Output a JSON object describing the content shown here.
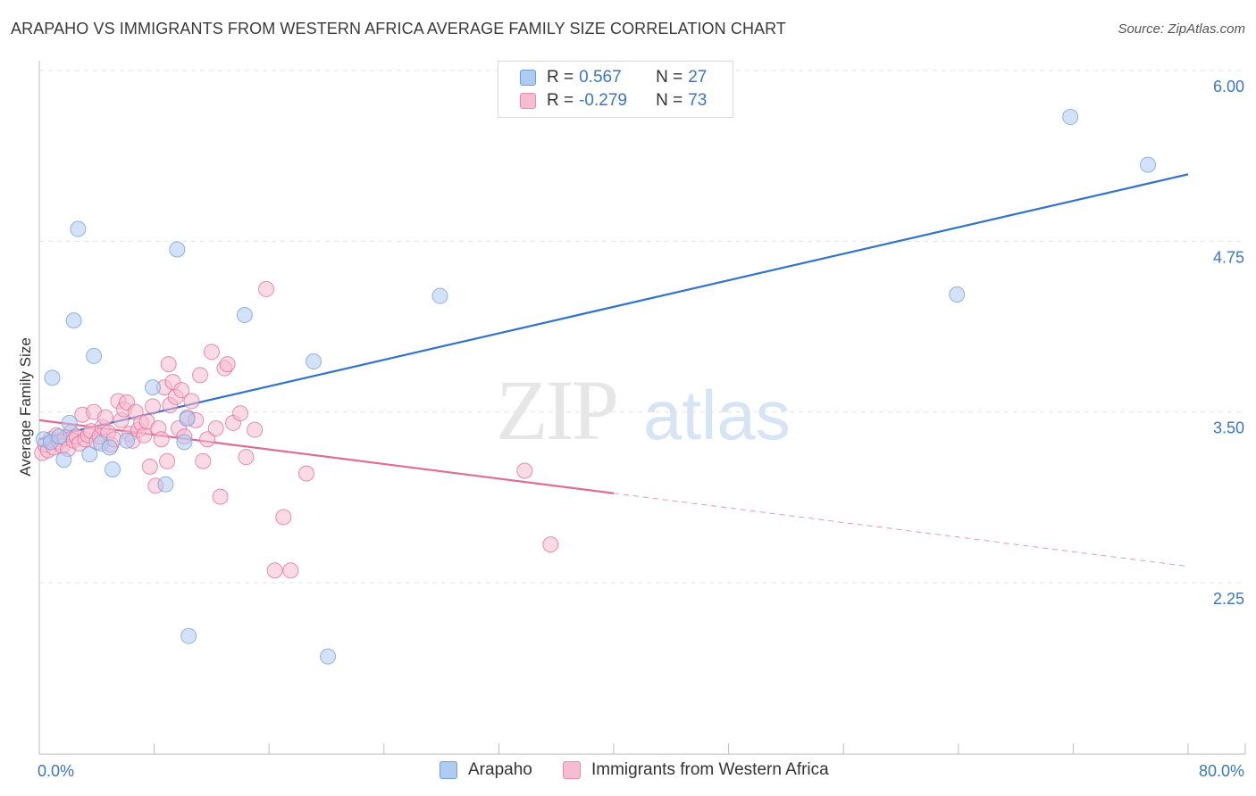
{
  "title": "ARAPAHO VS IMMIGRANTS FROM WESTERN AFRICA AVERAGE FAMILY SIZE CORRELATION CHART",
  "source": "Source: ZipAtlas.com",
  "watermark": {
    "zip": "ZIP",
    "atlas": "atlas"
  },
  "legend": {
    "r_label": "R =",
    "n_label": "N =",
    "series": [
      {
        "name": "Arapaho",
        "r": "0.567",
        "n": "27",
        "fill": "#aecbf2",
        "stroke": "#6f9fd8"
      },
      {
        "name": "Immigrants from Western Africa",
        "r": "-0.279",
        "n": "73",
        "fill": "#f8bcd0",
        "stroke": "#e98aa8"
      }
    ]
  },
  "chart_data": {
    "type": "scatter",
    "title": "ARAPAHO VS IMMIGRANTS FROM WESTERN AFRICA AVERAGE FAMILY SIZE CORRELATION CHART",
    "xlabel": "",
    "ylabel": "Average Family Size",
    "xlim": [
      0,
      80
    ],
    "ylim": [
      1.0,
      6.2
    ],
    "x_tick_labels": [
      {
        "value": 0,
        "label": "0.0%"
      },
      {
        "value": 80,
        "label": "80.0%"
      }
    ],
    "y_ticks": [
      {
        "value": 2.25,
        "label": "2.25"
      },
      {
        "value": 3.5,
        "label": "3.50"
      },
      {
        "value": 4.75,
        "label": "4.75"
      },
      {
        "value": 6.0,
        "label": "6.00"
      }
    ],
    "x_minor_ticks": [
      0,
      8,
      16,
      24,
      32,
      40,
      48,
      56,
      64,
      72,
      80
    ],
    "grid": true,
    "series": [
      {
        "name": "Arapaho",
        "color": "#6f9fd8",
        "fill": "#aecbf2",
        "points": [
          [
            0.3,
            3.3
          ],
          [
            0.8,
            3.28
          ],
          [
            1.4,
            3.32
          ],
          [
            0.9,
            3.75
          ],
          [
            1.7,
            3.15
          ],
          [
            2.1,
            3.42
          ],
          [
            2.4,
            4.17
          ],
          [
            2.7,
            4.84
          ],
          [
            3.5,
            3.19
          ],
          [
            3.8,
            3.91
          ],
          [
            4.3,
            3.27
          ],
          [
            4.9,
            3.24
          ],
          [
            5.1,
            3.08
          ],
          [
            6.1,
            3.29
          ],
          [
            7.9,
            3.68
          ],
          [
            8.8,
            2.97
          ],
          [
            9.6,
            4.69
          ],
          [
            10.1,
            3.28
          ],
          [
            10.3,
            3.45
          ],
          [
            10.4,
            1.86
          ],
          [
            14.3,
            4.21
          ],
          [
            19.1,
            3.87
          ],
          [
            20.1,
            1.71
          ],
          [
            27.9,
            4.35
          ],
          [
            63.9,
            4.36
          ],
          [
            71.8,
            5.66
          ],
          [
            77.2,
            5.31
          ]
        ],
        "trend": {
          "x0": 0,
          "y0": 3.3,
          "x1": 80,
          "y1": 5.24,
          "dashed_from": null
        }
      },
      {
        "name": "Immigrants from Western Africa",
        "color": "#e06c95",
        "fill": "#f8bcd0",
        "points": [
          [
            0.2,
            3.2
          ],
          [
            0.4,
            3.26
          ],
          [
            0.6,
            3.22
          ],
          [
            0.8,
            3.3
          ],
          [
            1.0,
            3.24
          ],
          [
            1.2,
            3.33
          ],
          [
            1.4,
            3.28
          ],
          [
            1.6,
            3.25
          ],
          [
            1.8,
            3.31
          ],
          [
            2.0,
            3.23
          ],
          [
            2.2,
            3.35
          ],
          [
            2.4,
            3.29
          ],
          [
            2.6,
            3.32
          ],
          [
            2.8,
            3.27
          ],
          [
            3.0,
            3.48
          ],
          [
            3.2,
            3.3
          ],
          [
            3.4,
            3.33
          ],
          [
            3.6,
            3.36
          ],
          [
            3.8,
            3.5
          ],
          [
            4.0,
            3.28
          ],
          [
            4.2,
            3.32
          ],
          [
            4.4,
            3.39
          ],
          [
            4.6,
            3.46
          ],
          [
            4.8,
            3.35
          ],
          [
            5.0,
            3.26
          ],
          [
            5.2,
            3.3
          ],
          [
            5.5,
            3.58
          ],
          [
            5.7,
            3.44
          ],
          [
            5.9,
            3.52
          ],
          [
            6.1,
            3.57
          ],
          [
            6.3,
            3.34
          ],
          [
            6.5,
            3.29
          ],
          [
            6.7,
            3.5
          ],
          [
            6.9,
            3.37
          ],
          [
            7.1,
            3.42
          ],
          [
            7.3,
            3.33
          ],
          [
            7.5,
            3.43
          ],
          [
            7.7,
            3.1
          ],
          [
            7.9,
            3.54
          ],
          [
            8.1,
            2.96
          ],
          [
            8.3,
            3.38
          ],
          [
            8.5,
            3.3
          ],
          [
            8.7,
            3.68
          ],
          [
            8.9,
            3.14
          ],
          [
            9.1,
            3.55
          ],
          [
            9.3,
            3.72
          ],
          [
            9.5,
            3.61
          ],
          [
            9.7,
            3.38
          ],
          [
            9.9,
            3.66
          ],
          [
            10.1,
            3.32
          ],
          [
            10.3,
            3.46
          ],
          [
            10.6,
            3.58
          ],
          [
            10.9,
            3.44
          ],
          [
            11.2,
            3.77
          ],
          [
            11.4,
            3.14
          ],
          [
            11.7,
            3.3
          ],
          [
            12.0,
            3.94
          ],
          [
            12.3,
            3.38
          ],
          [
            12.6,
            2.88
          ],
          [
            12.9,
            3.82
          ],
          [
            13.1,
            3.85
          ],
          [
            13.5,
            3.42
          ],
          [
            14.0,
            3.49
          ],
          [
            14.4,
            3.17
          ],
          [
            15.0,
            3.37
          ],
          [
            15.8,
            4.4
          ],
          [
            16.4,
            2.34
          ],
          [
            17.0,
            2.73
          ],
          [
            17.5,
            2.34
          ],
          [
            18.6,
            3.05
          ],
          [
            33.8,
            3.07
          ],
          [
            35.6,
            2.53
          ],
          [
            9.0,
            3.85
          ]
        ],
        "trend": {
          "x0": 0,
          "y0": 3.44,
          "x1": 80,
          "y1": 2.37,
          "dashed_from": 40
        }
      }
    ]
  }
}
